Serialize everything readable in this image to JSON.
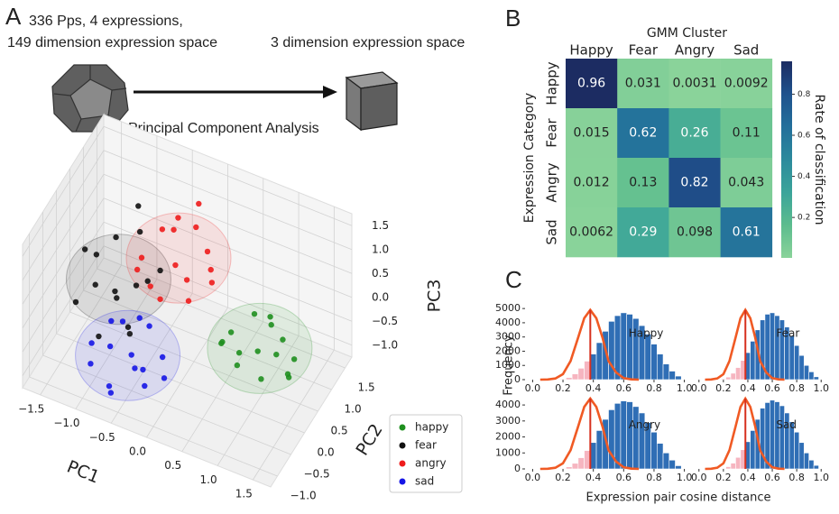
{
  "panel_labels": [
    "A",
    "B",
    "C"
  ],
  "diagram": {
    "input_lines": [
      "336 Pps, 4 expressions,",
      "149 dimension expression space"
    ],
    "output_text": "3 dimension expression space",
    "arrow_label": "Principal Component Analysis"
  },
  "histogram_labels": {
    "x_label": "Expression pair cosine distance",
    "y_label": "Frequency"
  },
  "chart_data": [
    {
      "type": "scatter3d",
      "x_label": "PC1",
      "y_label": "PC2",
      "z_label": "PC3",
      "xlim": [
        -1.75,
        1.75
      ],
      "ylim": [
        -1.25,
        1.75
      ],
      "zlim": [
        -1.25,
        1.75
      ],
      "xticks": [
        {
          "value": -1.5,
          "label": "−1.5"
        },
        {
          "value": -1.0,
          "label": "−1.0"
        },
        {
          "value": -0.5,
          "label": "−0.5"
        },
        {
          "value": 0,
          "label": "0.0"
        },
        0.5,
        {
          "value": 1,
          "label": "1.0"
        },
        1.5
      ],
      "yticks": [
        {
          "value": -1.0,
          "label": "−1.0"
        },
        {
          "value": -0.5,
          "label": "−0.5"
        },
        {
          "value": 0,
          "label": "0.0"
        },
        0.5,
        {
          "value": 1,
          "label": "1.0"
        },
        1.5
      ],
      "zticks": [
        {
          "value": -1.0,
          "label": "−1.0"
        },
        {
          "value": -0.5,
          "label": "−0.5"
        },
        {
          "value": 0,
          "label": "0.0"
        },
        0.5,
        {
          "value": 1,
          "label": "1.0"
        },
        1.5
      ],
      "grid": true,
      "legend": "lower right",
      "series": [
        {
          "name": "happy",
          "color": "#1f8f1f",
          "x": [
            0.9,
            0.5,
            1.3,
            0.7,
            1.1,
            0.6,
            1.2,
            0.9,
            1.4,
            0.4,
            1.0,
            0.8,
            1.3,
            0.6,
            1.1
          ],
          "y": [
            0.5,
            0.2,
            0.8,
            0.9,
            0.1,
            0.6,
            0.4,
            1.0,
            0.3,
            0.5,
            0.7,
            0.0,
            0.6,
            0.3,
            0.9
          ],
          "z": [
            -0.5,
            -0.3,
            -0.7,
            -0.2,
            -0.6,
            -0.8,
            -0.3,
            -0.4,
            -0.5,
            -0.6,
            0.1,
            -0.4,
            -0.9,
            -0.1,
            -0.5
          ]
        },
        {
          "name": "fear",
          "color": "#111111",
          "x": [
            -0.9,
            -1.3,
            -0.6,
            -1.1,
            -0.7,
            -1.4,
            -0.8,
            -1.0,
            -0.5,
            -1.2,
            -0.9,
            -0.7,
            -1.5,
            -0.4,
            -1.0
          ],
          "y": [
            0.0,
            0.3,
            -0.3,
            0.5,
            0.2,
            -0.2,
            0.6,
            -0.4,
            0.1,
            0.0,
            0.8,
            -0.1,
            0.4,
            0.3,
            0.2
          ],
          "z": [
            0.0,
            0.4,
            -0.3,
            0.7,
            0.2,
            -0.2,
            0.9,
            -0.5,
            0.5,
            0.1,
            1.2,
            -0.4,
            0.3,
            0.6,
            -0.1
          ]
        },
        {
          "name": "angry",
          "color": "#ee1c1c",
          "x": [
            -0.3,
            -0.6,
            0.0,
            -0.4,
            -0.1,
            -0.7,
            0.1,
            -0.2,
            -0.5,
            0.2,
            -0.3,
            -0.8,
            0.0,
            -0.4,
            -0.2
          ],
          "y": [
            0.6,
            0.9,
            0.3,
            0.8,
            0.5,
            0.4,
            0.9,
            1.1,
            0.2,
            0.6,
            0.7,
            0.5,
            1.0,
            0.3,
            1.2
          ],
          "z": [
            0.5,
            0.8,
            0.2,
            1.0,
            0.4,
            0.6,
            0.1,
            0.9,
            0.3,
            0.7,
            1.4,
            0.2,
            0.6,
            0.0,
            1.3
          ]
        },
        {
          "name": "sad",
          "color": "#1515e6",
          "x": [
            -0.5,
            -0.9,
            -0.2,
            -0.7,
            -0.3,
            -1.0,
            -0.1,
            -0.6,
            -0.4,
            -0.8,
            -0.3,
            -1.1,
            0.0,
            -0.5,
            -0.7
          ],
          "y": [
            -0.5,
            -0.2,
            -0.8,
            -0.3,
            -0.6,
            -0.7,
            -0.4,
            -1.0,
            -0.1,
            -0.5,
            -0.9,
            -0.4,
            -0.6,
            -0.2,
            -0.8
          ],
          "z": [
            -0.5,
            -0.3,
            -0.7,
            -0.1,
            -0.6,
            -0.8,
            -0.4,
            -0.9,
            -0.2,
            -0.5,
            -0.3,
            -0.7,
            -0.6,
            0.0,
            -1.0
          ]
        }
      ]
    },
    {
      "type": "heatmap",
      "x_label": "GMM Cluster",
      "y_label": "Expression Category",
      "x_categories": [
        "Happy",
        "Fear",
        "Angry",
        "Sad"
      ],
      "y_categories": [
        "Happy",
        "Fear",
        "Angry",
        "Sad"
      ],
      "values": [
        [
          0.96,
          0.031,
          0.0031,
          0.0092
        ],
        [
          0.015,
          0.62,
          0.26,
          0.11
        ],
        [
          0.012,
          0.13,
          0.82,
          0.043
        ],
        [
          0.0062,
          0.29,
          0.098,
          0.61
        ]
      ],
      "clim": [
        0.0031,
        0.96
      ],
      "colormap": [
        "#8ad39a",
        "#5cbc8e",
        "#3ba49a",
        "#2c8a9c",
        "#236f9b",
        "#1f528d",
        "#1c2c62"
      ],
      "colorbar_label": "Rate of classification",
      "colorbar_ticks": [
        0.2,
        0.4,
        0.6,
        0.8
      ]
    },
    {
      "type": "histogram",
      "title": "Happy",
      "color": "#2f6eb5",
      "below_color": "#f6b5c0",
      "threshold": 0.38,
      "threshold_color": "#d6301e",
      "bins": [
        0.18,
        0.22,
        0.26,
        0.3,
        0.34,
        0.38,
        0.42,
        0.46,
        0.5,
        0.54,
        0.58,
        0.62,
        0.66,
        0.7,
        0.74,
        0.78,
        0.82,
        0.86,
        0.9,
        0.94,
        0.98
      ],
      "values": [
        50,
        150,
        400,
        800,
        1300,
        1800,
        2600,
        3400,
        4100,
        4500,
        4700,
        4600,
        4300,
        3800,
        3200,
        2500,
        1800,
        1100,
        600,
        250
      ],
      "curve": {
        "color": "#f05a24",
        "x": [
          0.05,
          0.1,
          0.15,
          0.2,
          0.25,
          0.3,
          0.34,
          0.38,
          0.42,
          0.46,
          0.5,
          0.55,
          0.6,
          0.65,
          0.7
        ],
        "values": [
          0,
          10,
          80,
          390,
          1310,
          2970,
          4320,
          4900,
          4320,
          2970,
          1310,
          510,
          110,
          20,
          0
        ]
      },
      "xlim": [
        -0.05,
        1.05
      ],
      "ylim": [
        0,
        5200
      ],
      "xticks": [
        {
          "value": 0,
          "label": "0.0"
        },
        0.2,
        0.4,
        0.6,
        0.8,
        {
          "value": 1,
          "label": "1.0"
        }
      ],
      "yticks": [
        0,
        1000,
        2000,
        3000,
        4000,
        5000
      ]
    },
    {
      "type": "histogram",
      "title": "Fear",
      "color": "#2f6eb5",
      "below_color": "#f6b5c0",
      "threshold": 0.38,
      "threshold_color": "#d6301e",
      "bins": [
        0.18,
        0.22,
        0.26,
        0.3,
        0.34,
        0.38,
        0.42,
        0.46,
        0.5,
        0.54,
        0.58,
        0.62,
        0.66,
        0.7,
        0.74,
        0.78,
        0.82,
        0.86,
        0.9,
        0.94,
        0.98
      ],
      "values": [
        60,
        180,
        450,
        850,
        1350,
        1900,
        2700,
        3500,
        4200,
        4600,
        4700,
        4500,
        4200,
        3700,
        3100,
        2400,
        1700,
        1000,
        550,
        200
      ],
      "curve": {
        "color": "#f05a24",
        "x": [
          0.05,
          0.1,
          0.15,
          0.2,
          0.25,
          0.3,
          0.34,
          0.38,
          0.42,
          0.46,
          0.5,
          0.55,
          0.6,
          0.65,
          0.7
        ],
        "values": [
          0,
          10,
          80,
          390,
          1310,
          2970,
          4320,
          4900,
          4320,
          2970,
          1310,
          510,
          110,
          20,
          0
        ]
      },
      "xlim": [
        -0.05,
        1.05
      ],
      "ylim": [
        0,
        5200
      ],
      "xticks": [
        {
          "value": 0,
          "label": "0.0"
        },
        0.2,
        0.4,
        0.6,
        0.8,
        {
          "value": 1,
          "label": "1.0"
        }
      ]
    },
    {
      "type": "histogram",
      "title": "Angry",
      "color": "#2f6eb5",
      "below_color": "#f6b5c0",
      "threshold": 0.38,
      "threshold_color": "#d6301e",
      "bins": [
        0.18,
        0.22,
        0.26,
        0.3,
        0.34,
        0.38,
        0.42,
        0.46,
        0.5,
        0.54,
        0.58,
        0.62,
        0.66,
        0.7,
        0.74,
        0.78,
        0.82,
        0.86,
        0.9,
        0.94,
        0.98
      ],
      "values": [
        40,
        130,
        350,
        700,
        1150,
        1650,
        2400,
        3100,
        3700,
        4100,
        4250,
        4200,
        3900,
        3500,
        2900,
        2300,
        1600,
        1000,
        550,
        200
      ],
      "curve": {
        "color": "#f05a24",
        "x": [
          0.05,
          0.1,
          0.15,
          0.2,
          0.25,
          0.3,
          0.34,
          0.38,
          0.42,
          0.46,
          0.5,
          0.55,
          0.6,
          0.65,
          0.7
        ],
        "values": [
          0,
          9,
          72,
          350,
          1175,
          2665,
          3880,
          4400,
          3880,
          2665,
          1175,
          460,
          100,
          18,
          0
        ]
      },
      "xlim": [
        -0.05,
        1.05
      ],
      "ylim": [
        0,
        4400
      ],
      "xticks": [
        {
          "value": 0,
          "label": "0.0"
        },
        0.2,
        0.4,
        0.6,
        0.8,
        {
          "value": 1,
          "label": "1.0"
        }
      ],
      "yticks": [
        0,
        1000,
        2000,
        3000,
        4000
      ]
    },
    {
      "type": "histogram",
      "title": "Sad",
      "color": "#2f6eb5",
      "below_color": "#f6b5c0",
      "threshold": 0.38,
      "threshold_color": "#d6301e",
      "bins": [
        0.18,
        0.22,
        0.26,
        0.3,
        0.34,
        0.38,
        0.42,
        0.46,
        0.5,
        0.54,
        0.58,
        0.62,
        0.66,
        0.7,
        0.74,
        0.78,
        0.82,
        0.86,
        0.9,
        0.94,
        0.98
      ],
      "values": [
        40,
        140,
        360,
        720,
        1200,
        1700,
        2400,
        3100,
        3800,
        4150,
        4300,
        4200,
        3950,
        3500,
        2950,
        2300,
        1650,
        1000,
        550,
        220
      ],
      "curve": {
        "color": "#f05a24",
        "x": [
          0.05,
          0.1,
          0.15,
          0.2,
          0.25,
          0.3,
          0.34,
          0.38,
          0.42,
          0.46,
          0.5,
          0.55,
          0.6,
          0.65,
          0.7
        ],
        "values": [
          0,
          9,
          72,
          350,
          1175,
          2665,
          3880,
          4400,
          3880,
          2665,
          1175,
          460,
          100,
          18,
          0
        ]
      },
      "xlim": [
        -0.05,
        1.05
      ],
      "ylim": [
        0,
        4400
      ],
      "xticks": [
        {
          "value": 0,
          "label": "0.0"
        },
        0.2,
        0.4,
        0.6,
        0.8,
        {
          "value": 1,
          "label": "1.0"
        }
      ]
    }
  ]
}
